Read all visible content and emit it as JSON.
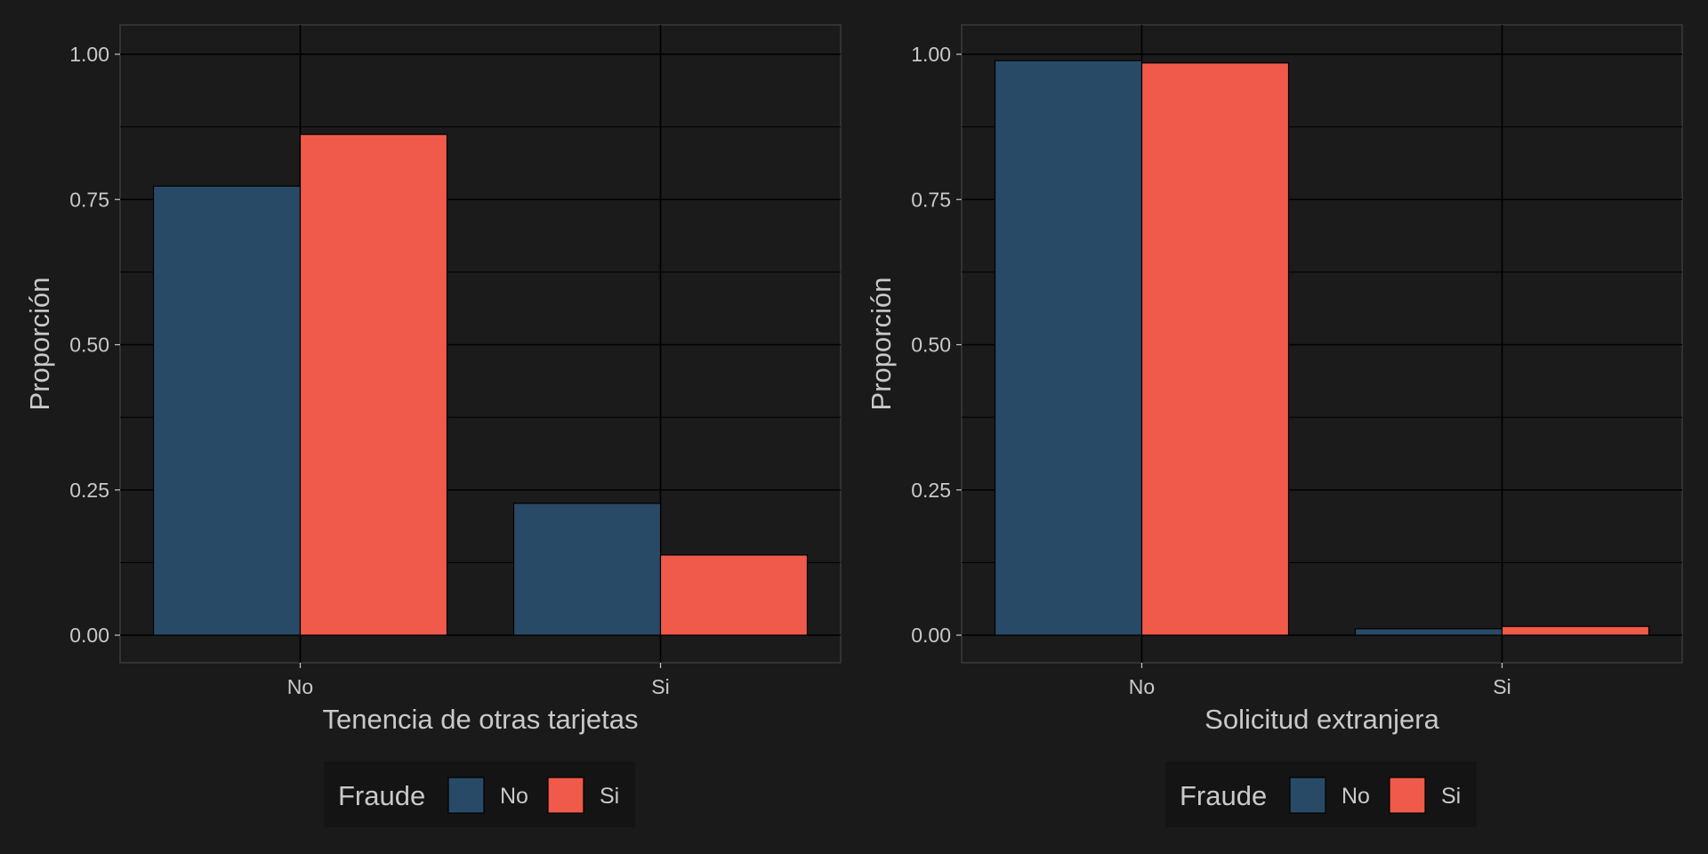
{
  "theme": {
    "background": "#1a1a1a",
    "panel": "#1b1b1b",
    "panel_border": "#3a3a3a",
    "grid_major": "#000000",
    "grid_minor": "#141414",
    "text": "#c9c9c9",
    "legend_background": "#141414"
  },
  "chart_data": [
    {
      "type": "bar",
      "categories": [
        "No",
        "Si"
      ],
      "xlabel": "Tenencia de otras tarjetas",
      "ylabel": "Proporción",
      "ylim": [
        0,
        1
      ],
      "yticks": [
        "0.00",
        "0.25",
        "0.50",
        "0.75",
        "1.00"
      ],
      "series": [
        {
          "name": "No",
          "color": "#284a66",
          "values": [
            0.773,
            0.227
          ]
        },
        {
          "name": "Si",
          "color": "#f05a4a",
          "values": [
            0.862,
            0.138
          ]
        }
      ],
      "legend": {
        "title": "Fraude",
        "position": "bottom"
      },
      "grid": true
    },
    {
      "type": "bar",
      "categories": [
        "No",
        "Si"
      ],
      "xlabel": "Solicitud extranjera",
      "ylabel": "Proporción",
      "ylim": [
        0,
        1
      ],
      "yticks": [
        "0.00",
        "0.25",
        "0.50",
        "0.75",
        "1.00"
      ],
      "series": [
        {
          "name": "No",
          "color": "#284a66",
          "values": [
            0.989,
            0.011
          ]
        },
        {
          "name": "Si",
          "color": "#f05a4a",
          "values": [
            0.985,
            0.015
          ]
        }
      ],
      "legend": {
        "title": "Fraude",
        "position": "bottom"
      },
      "grid": true
    }
  ]
}
